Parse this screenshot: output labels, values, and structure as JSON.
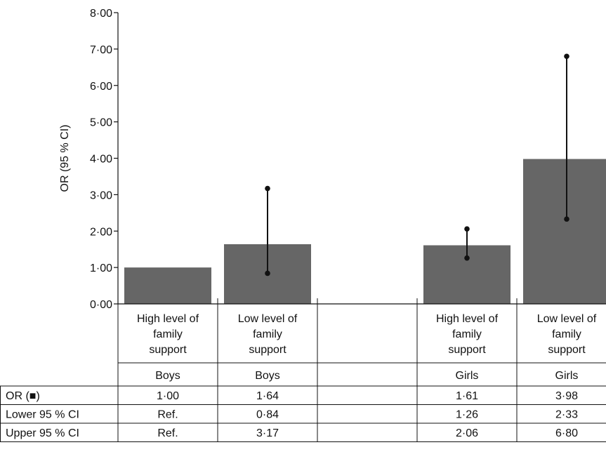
{
  "chart_data": {
    "type": "bar",
    "title": "",
    "ylabel": "OR (95 % CI)",
    "ylim": [
      0,
      8
    ],
    "yticks": [
      0,
      1,
      2,
      3,
      4,
      5,
      6,
      7,
      8
    ],
    "ytick_labels": [
      "0·00",
      "1·00",
      "2·00",
      "3·00",
      "4·00",
      "5·00",
      "6·00",
      "7·00",
      "8·00"
    ],
    "grid": false,
    "bar_color": "#666666",
    "error_color": "#111111",
    "categories": [
      {
        "label": "High level of family support",
        "label_lines": [
          "High level of",
          "family",
          "support"
        ],
        "group": "Boys",
        "value": 1.0,
        "lower": null,
        "upper": null
      },
      {
        "label": "Low level of family support",
        "label_lines": [
          "Low level of",
          "family",
          "support"
        ],
        "group": "Boys",
        "value": 1.64,
        "lower": 0.84,
        "upper": 3.17
      },
      {
        "label": "",
        "label_lines": [],
        "group": "",
        "value": null,
        "lower": null,
        "upper": null
      },
      {
        "label": "High level of family support",
        "label_lines": [
          "High level of",
          "family",
          "support"
        ],
        "group": "Girls",
        "value": 1.61,
        "lower": 1.26,
        "upper": 2.06
      },
      {
        "label": "Low level of family support",
        "label_lines": [
          "Low level of",
          "family",
          "support"
        ],
        "group": "Girls",
        "value": 3.98,
        "lower": 2.33,
        "upper": 6.8
      }
    ],
    "table": {
      "rows": [
        {
          "label": "OR (■)",
          "values": [
            "1·00",
            "1·64",
            "",
            "1·61",
            "3·98"
          ]
        },
        {
          "label": "Lower 95 % CI",
          "values": [
            "Ref.",
            "0·84",
            "",
            "1·26",
            "2·33"
          ]
        },
        {
          "label": "Upper 95 % CI",
          "values": [
            "Ref.",
            "3·17",
            "",
            "2·06",
            "6·80"
          ]
        }
      ]
    }
  }
}
